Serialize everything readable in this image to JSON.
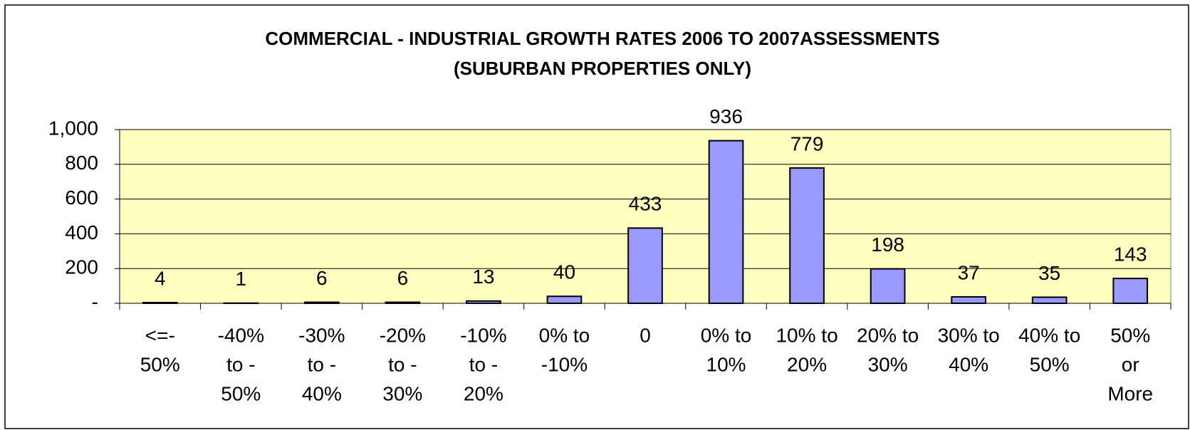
{
  "chart_data": {
    "type": "bar",
    "title": "COMMERCIAL - INDUSTRIAL GROWTH RATES 2006 TO 2007ASSESSMENTS",
    "subtitle": "(SUBURBAN PROPERTIES ONLY)",
    "categories": [
      [
        "<=-",
        "50%"
      ],
      [
        "-40%",
        "to -",
        "50%"
      ],
      [
        "-30%",
        "to -",
        "40%"
      ],
      [
        "-20%",
        "to -",
        "30%"
      ],
      [
        "-10%",
        "to -",
        "20%"
      ],
      [
        "0%  to",
        "-10%"
      ],
      [
        "0"
      ],
      [
        "0% to",
        "10%"
      ],
      [
        "10% to",
        "20%"
      ],
      [
        "20% to",
        "30%"
      ],
      [
        "30% to",
        "40%"
      ],
      [
        "40% to",
        "50%"
      ],
      [
        "50%",
        "or",
        "More"
      ]
    ],
    "values": [
      4,
      1,
      6,
      6,
      13,
      40,
      433,
      936,
      779,
      198,
      37,
      35,
      143
    ],
    "color": "#9999ff",
    "ylim": [
      0,
      1000
    ],
    "yticks": [
      {
        "value": 0,
        "label": "-"
      },
      200,
      400,
      600,
      800,
      {
        "value": 1000,
        "label": "1,000"
      }
    ],
    "grid": true
  }
}
